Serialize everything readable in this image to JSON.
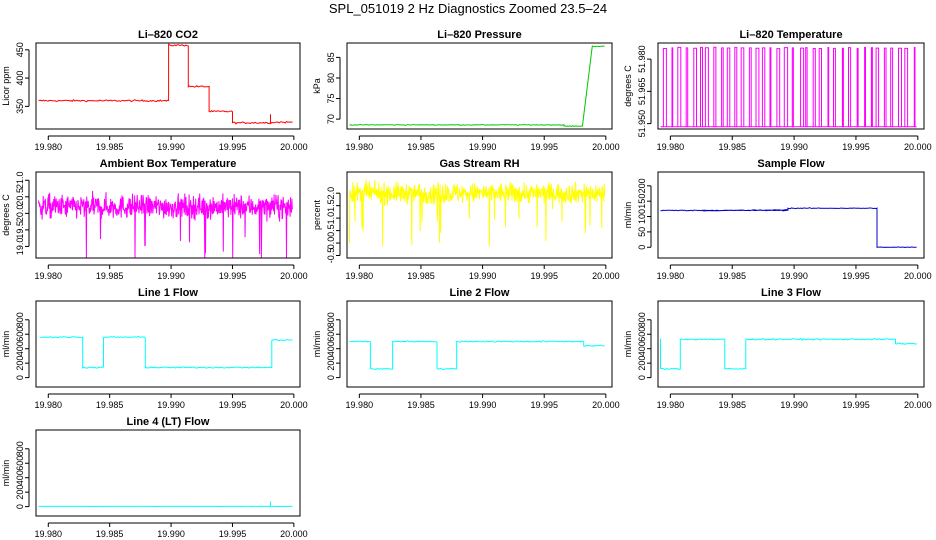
{
  "figure_title": "SPL_051019  2 Hz Diagnostics Zoomed 23.5–24",
  "chart_data": [
    {
      "type": "line",
      "title": "Li–820 CO2",
      "ylabel": "Licor ppm",
      "color": "#ff0000",
      "xlim": [
        19.979,
        20.0005
      ],
      "ylim": [
        310,
        462
      ],
      "x_ticks": [
        19.98,
        19.985,
        19.99,
        19.995,
        20.0
      ],
      "x_tick_labels": [
        "19.980",
        "19.985",
        "19.990",
        "19.995",
        "20.000"
      ],
      "y_ticks": [
        350,
        400,
        450
      ],
      "y_tick_labels": [
        "350",
        "400",
        "450"
      ],
      "noise": 1.5,
      "segments": [
        [
          19.9792,
          19.9898,
          360
        ],
        [
          19.9898,
          19.9914,
          458
        ],
        [
          19.9914,
          19.9931,
          385
        ],
        [
          19.9931,
          19.995,
          341
        ],
        [
          19.995,
          19.9982,
          321
        ],
        [
          19.9982,
          19.9999,
          322
        ]
      ],
      "spikes": [
        [
          19.9981,
          336
        ]
      ]
    },
    {
      "type": "line",
      "title": "Li–820 Pressure",
      "ylabel": "kPa",
      "color": "#00cc00",
      "xlim": [
        19.979,
        20.0005
      ],
      "ylim": [
        67.6,
        88.5
      ],
      "x_ticks": [
        19.98,
        19.985,
        19.99,
        19.995,
        20.0
      ],
      "x_tick_labels": [
        "19.980",
        "19.985",
        "19.990",
        "19.995",
        "20.000"
      ],
      "y_ticks": [
        70,
        75,
        80,
        85
      ],
      "y_tick_labels": [
        "70",
        "75",
        "80",
        "85"
      ],
      "noise": 0.08,
      "segments": [
        [
          19.9792,
          19.9966,
          68.6
        ],
        [
          19.9966,
          19.9981,
          68.3
        ],
        [
          19.9989,
          19.9999,
          87.7
        ]
      ],
      "ramps": [
        [
          19.9981,
          68.3,
          19.9989,
          87.7
        ]
      ]
    },
    {
      "type": "line",
      "title": "Li–820 Temperature",
      "ylabel": "degrees C",
      "color": "#ff00ff",
      "xlim": [
        19.979,
        20.0005
      ],
      "ylim": [
        51.9475,
        51.9875
      ],
      "x_ticks": [
        19.98,
        19.985,
        19.99,
        19.995,
        20.0
      ],
      "x_tick_labels": [
        "19.980",
        "19.985",
        "19.990",
        "19.995",
        "20.000"
      ],
      "y_ticks": [
        51.95,
        51.965,
        51.98
      ],
      "y_tick_labels": [
        "51.950",
        "51.965",
        "51.980"
      ],
      "base": 51.9485,
      "pulse_top": 51.9855,
      "pulse_count": 36
    },
    {
      "type": "line",
      "title": "Ambient Box Temperature",
      "ylabel": "degrees C",
      "color": "#ff00ff",
      "xlim": [
        19.979,
        20.0005
      ],
      "ylim": [
        18.65,
        21.25
      ],
      "x_ticks": [
        19.98,
        19.985,
        19.99,
        19.995,
        20.0
      ],
      "x_tick_labels": [
        "19.980",
        "19.985",
        "19.990",
        "19.995",
        "20.000"
      ],
      "y_ticks": [
        19.0,
        19.5,
        20.0,
        20.5,
        21.0
      ],
      "y_tick_labels": [
        "19.0",
        "19.5",
        "20.0",
        "20.5",
        "21.0"
      ],
      "mean": 20.2,
      "spread": 0.35,
      "n_points": 700
    },
    {
      "type": "line",
      "title": "Gas Stream RH",
      "ylabel": "percent",
      "color": "#ffff00",
      "xlim": [
        19.979,
        20.0005
      ],
      "ylim": [
        -0.6,
        2.85
      ],
      "x_ticks": [
        19.98,
        19.985,
        19.99,
        19.995,
        20.0
      ],
      "x_tick_labels": [
        "19.980",
        "19.985",
        "19.990",
        "19.995",
        "20.000"
      ],
      "y_ticks": [
        -0.5,
        0.0,
        0.5,
        1.0,
        1.5,
        2.0
      ],
      "y_tick_labels": [
        "-0.5",
        "0.0",
        "0.5",
        "1.0",
        "1.5",
        "2.0"
      ],
      "mean": 2.0,
      "spread": 0.4,
      "n_points": 700
    },
    {
      "type": "line",
      "title": "Sample Flow",
      "ylabel": "ml/min",
      "color": "#0000cc",
      "xlim": [
        19.979,
        20.0005
      ],
      "ylim": [
        -35,
        245
      ],
      "x_ticks": [
        19.98,
        19.985,
        19.99,
        19.995,
        20.0
      ],
      "x_tick_labels": [
        "19.980",
        "19.985",
        "19.990",
        "19.995",
        "20.000"
      ],
      "y_ticks": [
        0,
        50,
        100,
        150,
        200
      ],
      "y_tick_labels": [
        "0",
        "50",
        "100",
        "150",
        "200"
      ],
      "noise": 1.2,
      "segments": [
        [
          19.9792,
          19.9895,
          120
        ],
        [
          19.9895,
          19.9967,
          127
        ],
        [
          19.9967,
          19.9999,
          0
        ]
      ],
      "ramps": [
        [
          19.9826,
          119,
          19.9895,
          122
        ]
      ]
    },
    {
      "type": "line",
      "title": "Line 1 Flow",
      "ylabel": "ml/min",
      "color": "#00ffff",
      "xlim": [
        19.979,
        20.0005
      ],
      "ylim": [
        -130,
        1060
      ],
      "x_ticks": [
        19.98,
        19.985,
        19.99,
        19.995,
        20.0
      ],
      "x_tick_labels": [
        "19.980",
        "19.985",
        "19.990",
        "19.995",
        "20.000"
      ],
      "y_ticks": [
        0,
        200,
        400,
        600,
        800
      ],
      "y_tick_labels": [
        "0",
        "200",
        "400",
        "600",
        "800"
      ],
      "noise": 9,
      "segments": [
        [
          19.9793,
          19.9828,
          560
        ],
        [
          19.9828,
          19.9845,
          140
        ],
        [
          19.9845,
          19.9879,
          560
        ],
        [
          19.9879,
          19.9982,
          140
        ],
        [
          19.9982,
          19.9999,
          520
        ]
      ]
    },
    {
      "type": "line",
      "title": "Line 2 Flow",
      "ylabel": "ml/min",
      "color": "#00ffff",
      "xlim": [
        19.979,
        20.0005
      ],
      "ylim": [
        -130,
        1060
      ],
      "x_ticks": [
        19.98,
        19.985,
        19.99,
        19.995,
        20.0
      ],
      "x_tick_labels": [
        "19.980",
        "19.985",
        "19.990",
        "19.995",
        "20.000"
      ],
      "y_ticks": [
        0,
        200,
        400,
        600,
        800
      ],
      "y_tick_labels": [
        "0",
        "200",
        "400",
        "600",
        "800"
      ],
      "noise": 9,
      "segments": [
        [
          19.9792,
          19.9809,
          500
        ],
        [
          19.9809,
          19.9827,
          120
        ],
        [
          19.9827,
          19.9863,
          500
        ],
        [
          19.9863,
          19.9879,
          120
        ],
        [
          19.9879,
          19.9982,
          500
        ],
        [
          19.9982,
          19.9999,
          440
        ]
      ]
    },
    {
      "type": "line",
      "title": "Line 3 Flow",
      "ylabel": "ml/min",
      "color": "#00ffff",
      "xlim": [
        19.979,
        20.0005
      ],
      "ylim": [
        -130,
        1060
      ],
      "x_ticks": [
        19.98,
        19.985,
        19.99,
        19.995,
        20.0
      ],
      "x_tick_labels": [
        "19.980",
        "19.985",
        "19.990",
        "19.995",
        "20.000"
      ],
      "y_ticks": [
        0,
        200,
        400,
        600,
        800
      ],
      "y_tick_labels": [
        "0",
        "200",
        "400",
        "600",
        "800"
      ],
      "noise": 9,
      "segments": [
        [
          19.9792,
          19.9808,
          120
        ],
        [
          19.9808,
          19.9844,
          530
        ],
        [
          19.9844,
          19.9861,
          120
        ],
        [
          19.9861,
          19.9982,
          530
        ],
        [
          19.9982,
          19.9999,
          470
        ]
      ],
      "spikes": [
        [
          19.9792,
          540
        ]
      ]
    },
    {
      "type": "line",
      "title": "Line 4 (LT) Flow",
      "ylabel": "ml/min",
      "color": "#00ffff",
      "xlim": [
        19.979,
        20.0005
      ],
      "ylim": [
        -130,
        1060
      ],
      "x_ticks": [
        19.98,
        19.985,
        19.99,
        19.995,
        20.0
      ],
      "x_tick_labels": [
        "19.980",
        "19.985",
        "19.990",
        "19.995",
        "20.000"
      ],
      "y_ticks": [
        0,
        200,
        400,
        600,
        800
      ],
      "y_tick_labels": [
        "0",
        "200",
        "400",
        "600",
        "800"
      ],
      "noise": 1.5,
      "segments": [
        [
          19.9792,
          19.9999,
          3
        ]
      ],
      "spikes": [
        [
          19.9981,
          70
        ]
      ]
    }
  ]
}
